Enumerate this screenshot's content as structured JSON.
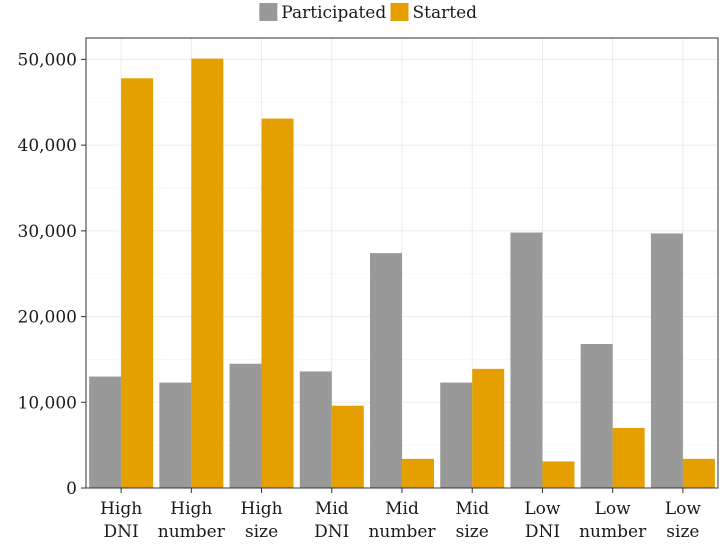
{
  "chart_data": {
    "type": "bar",
    "categories": [
      [
        "High",
        "DNI"
      ],
      [
        "High",
        "number"
      ],
      [
        "High",
        "size"
      ],
      [
        "Mid",
        "DNI"
      ],
      [
        "Mid",
        "number"
      ],
      [
        "Mid",
        "size"
      ],
      [
        "Low",
        "DNI"
      ],
      [
        "Low",
        "number"
      ],
      [
        "Low",
        "size"
      ]
    ],
    "series": [
      {
        "name": "Participated",
        "color": "#999999",
        "values": [
          13000,
          12300,
          14500,
          13600,
          27400,
          12300,
          29800,
          16800,
          29700
        ]
      },
      {
        "name": "Started",
        "color": "#E69F00",
        "values": [
          47800,
          50100,
          43100,
          9600,
          3400,
          13900,
          3100,
          7000,
          3400
        ]
      }
    ],
    "ylim": [
      0,
      52500
    ],
    "yticks": [
      0,
      10000,
      20000,
      30000,
      40000,
      50000
    ],
    "ytick_labels": [
      "0",
      "10,000",
      "20,000",
      "30,000",
      "40,000",
      "50,000"
    ],
    "grid": true,
    "legend": "top-center",
    "title": "",
    "xlabel": "",
    "ylabel": ""
  }
}
